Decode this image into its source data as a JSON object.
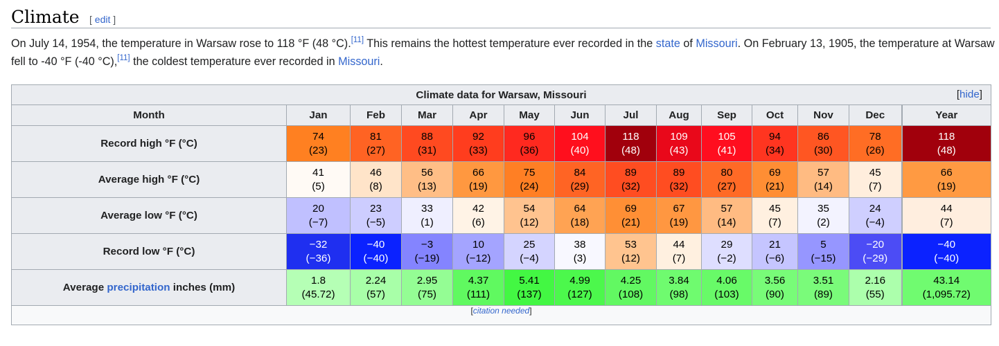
{
  "section": {
    "title": "Climate",
    "edit_open": "[ ",
    "edit_label": "edit",
    "edit_close": " ]"
  },
  "paragraph": {
    "p1": "On July 14, 1954, the temperature in Warsaw rose to 118 °F (48 °C).",
    "ref1": "[11]",
    "p2": " This remains the hottest temperature ever recorded in the ",
    "link_state": "state",
    "p3": " of ",
    "link_missouri1": "Missouri",
    "p4": ". On February 13, 1905, the temperature at Warsaw fell to -40 °F (-40 °C),",
    "ref2": "[11]",
    "p5": " the coldest temperature ever recorded in ",
    "link_missouri2": "Missouri",
    "p6": "."
  },
  "table": {
    "caption": "Climate data for Warsaw, Missouri",
    "hide_label": "[hide]",
    "month_header": "Month",
    "months": [
      "Jan",
      "Feb",
      "Mar",
      "Apr",
      "May",
      "Jun",
      "Jul",
      "Aug",
      "Sep",
      "Oct",
      "Nov",
      "Dec"
    ],
    "year_header": "Year",
    "rows": [
      {
        "label": "Record high °F (°C)",
        "cells": [
          {
            "f": "74",
            "c": "(23)",
            "bg": "#ff8021",
            "fg": "#000"
          },
          {
            "f": "81",
            "c": "(27)",
            "bg": "#ff6323",
            "fg": "#000"
          },
          {
            "f": "88",
            "c": "(31)",
            "bg": "#ff4a20",
            "fg": "#000"
          },
          {
            "f": "92",
            "c": "(33)",
            "bg": "#ff3d1e",
            "fg": "#000"
          },
          {
            "f": "96",
            "c": "(36)",
            "bg": "#ff291f",
            "fg": "#000"
          },
          {
            "f": "104",
            "c": "(40)",
            "bg": "#ff0f1d",
            "fg": "#fff"
          },
          {
            "f": "118",
            "c": "(48)",
            "bg": "#a1000c",
            "fg": "#fff"
          },
          {
            "f": "109",
            "c": "(43)",
            "bg": "#e9081a",
            "fg": "#fff"
          },
          {
            "f": "105",
            "c": "(41)",
            "bg": "#ff0e1f",
            "fg": "#fff"
          },
          {
            "f": "94",
            "c": "(34)",
            "bg": "#ff3520",
            "fg": "#000"
          },
          {
            "f": "86",
            "c": "(30)",
            "bg": "#ff5622",
            "fg": "#000"
          },
          {
            "f": "78",
            "c": "(26)",
            "bg": "#ff6d24",
            "fg": "#000"
          }
        ],
        "year": {
          "f": "118",
          "c": "(48)",
          "bg": "#a1000c",
          "fg": "#fff"
        }
      },
      {
        "label": "Average high °F (°C)",
        "cells": [
          {
            "f": "41",
            "c": "(5)",
            "bg": "#fffaf5",
            "fg": "#000"
          },
          {
            "f": "46",
            "c": "(8)",
            "bg": "#ffe4c9",
            "fg": "#000"
          },
          {
            "f": "56",
            "c": "(13)",
            "bg": "#ffbe86",
            "fg": "#000"
          },
          {
            "f": "66",
            "c": "(19)",
            "bg": "#ff9840",
            "fg": "#000"
          },
          {
            "f": "75",
            "c": "(24)",
            "bg": "#ff7f24",
            "fg": "#000"
          },
          {
            "f": "84",
            "c": "(29)",
            "bg": "#ff6424",
            "fg": "#000"
          },
          {
            "f": "89",
            "c": "(32)",
            "bg": "#ff4d21",
            "fg": "#000"
          },
          {
            "f": "89",
            "c": "(32)",
            "bg": "#ff4d21",
            "fg": "#000"
          },
          {
            "f": "80",
            "c": "(27)",
            "bg": "#ff6a26",
            "fg": "#000"
          },
          {
            "f": "69",
            "c": "(21)",
            "bg": "#ff8e34",
            "fg": "#000"
          },
          {
            "f": "57",
            "c": "(14)",
            "bg": "#ffbb82",
            "fg": "#000"
          },
          {
            "f": "45",
            "c": "(7)",
            "bg": "#ffeedd",
            "fg": "#000"
          }
        ],
        "year": {
          "f": "66",
          "c": "(19)",
          "bg": "#ff9a42",
          "fg": "#000"
        }
      },
      {
        "label": "Average low °F (°C)",
        "cells": [
          {
            "f": "20",
            "c": "(−7)",
            "bg": "#c0c0ff",
            "fg": "#000"
          },
          {
            "f": "23",
            "c": "(−5)",
            "bg": "#cdcdff",
            "fg": "#000"
          },
          {
            "f": "33",
            "c": "(1)",
            "bg": "#efefff",
            "fg": "#000"
          },
          {
            "f": "42",
            "c": "(6)",
            "bg": "#fff3e6",
            "fg": "#000"
          },
          {
            "f": "54",
            "c": "(12)",
            "bg": "#ffc38f",
            "fg": "#000"
          },
          {
            "f": "64",
            "c": "(18)",
            "bg": "#ffa353",
            "fg": "#000"
          },
          {
            "f": "69",
            "c": "(21)",
            "bg": "#ff8f35",
            "fg": "#000"
          },
          {
            "f": "67",
            "c": "(19)",
            "bg": "#ff9741",
            "fg": "#000"
          },
          {
            "f": "57",
            "c": "(14)",
            "bg": "#ffbb82",
            "fg": "#000"
          },
          {
            "f": "45",
            "c": "(7)",
            "bg": "#fff0e0",
            "fg": "#000"
          },
          {
            "f": "35",
            "c": "(2)",
            "bg": "#f3f3ff",
            "fg": "#000"
          },
          {
            "f": "24",
            "c": "(−4)",
            "bg": "#cfcfff",
            "fg": "#000"
          }
        ],
        "year": {
          "f": "44",
          "c": "(7)",
          "bg": "#ffeedf",
          "fg": "#000"
        }
      },
      {
        "label": "Record low °F (°C)",
        "cells": [
          {
            "f": "−32",
            "c": "(−36)",
            "bg": "#1f2ff0",
            "fg": "#fff"
          },
          {
            "f": "−40",
            "c": "(−40)",
            "bg": "#0b22ff",
            "fg": "#fff"
          },
          {
            "f": "−3",
            "c": "(−19)",
            "bg": "#8484ff",
            "fg": "#000"
          },
          {
            "f": "10",
            "c": "(−12)",
            "bg": "#a4a4ff",
            "fg": "#000"
          },
          {
            "f": "25",
            "c": "(−4)",
            "bg": "#d4d4ff",
            "fg": "#000"
          },
          {
            "f": "38",
            "c": "(3)",
            "bg": "#f8f8ff",
            "fg": "#000"
          },
          {
            "f": "53",
            "c": "(12)",
            "bg": "#ffc48f",
            "fg": "#000"
          },
          {
            "f": "44",
            "c": "(7)",
            "bg": "#fff0e0",
            "fg": "#000"
          },
          {
            "f": "29",
            "c": "(−2)",
            "bg": "#dedeff",
            "fg": "#000"
          },
          {
            "f": "21",
            "c": "(−6)",
            "bg": "#c5c5ff",
            "fg": "#000"
          },
          {
            "f": "5",
            "c": "(−15)",
            "bg": "#9696ff",
            "fg": "#000"
          },
          {
            "f": "−20",
            "c": "(−29)",
            "bg": "#4c4cf5",
            "fg": "#fff"
          }
        ],
        "year": {
          "f": "−40",
          "c": "(−40)",
          "bg": "#0b22ff",
          "fg": "#fff"
        }
      },
      {
        "label_pre": "Average ",
        "label_link": "precipitation",
        "label_post": " inches (mm)",
        "cells": [
          {
            "f": "1.8",
            "c": "(45.72)",
            "bg": "#b5ffb5",
            "fg": "#000"
          },
          {
            "f": "2.24",
            "c": "(57)",
            "bg": "#a8ffa8",
            "fg": "#000"
          },
          {
            "f": "2.95",
            "c": "(75)",
            "bg": "#94fd94",
            "fg": "#000"
          },
          {
            "f": "4.37",
            "c": "(111)",
            "bg": "#60f960",
            "fg": "#000"
          },
          {
            "f": "5.41",
            "c": "(137)",
            "bg": "#43f743",
            "fg": "#000"
          },
          {
            "f": "4.99",
            "c": "(127)",
            "bg": "#4cf84c",
            "fg": "#000"
          },
          {
            "f": "4.25",
            "c": "(108)",
            "bg": "#62f862",
            "fg": "#000"
          },
          {
            "f": "3.84",
            "c": "(98)",
            "bg": "#6ffb6f",
            "fg": "#000"
          },
          {
            "f": "4.06",
            "c": "(103)",
            "bg": "#68fa68",
            "fg": "#000"
          },
          {
            "f": "3.56",
            "c": "(90)",
            "bg": "#78fc78",
            "fg": "#000"
          },
          {
            "f": "3.51",
            "c": "(89)",
            "bg": "#7afb7a",
            "fg": "#000"
          },
          {
            "f": "2.16",
            "c": "(55)",
            "bg": "#acffac",
            "fg": "#000"
          }
        ],
        "year": {
          "f": "43.14",
          "c": "(1,095.72)",
          "bg": "#70fb70",
          "fg": "#000"
        }
      }
    ],
    "footer_open": "[",
    "footer_cite": "citation needed",
    "footer_close": "]"
  }
}
